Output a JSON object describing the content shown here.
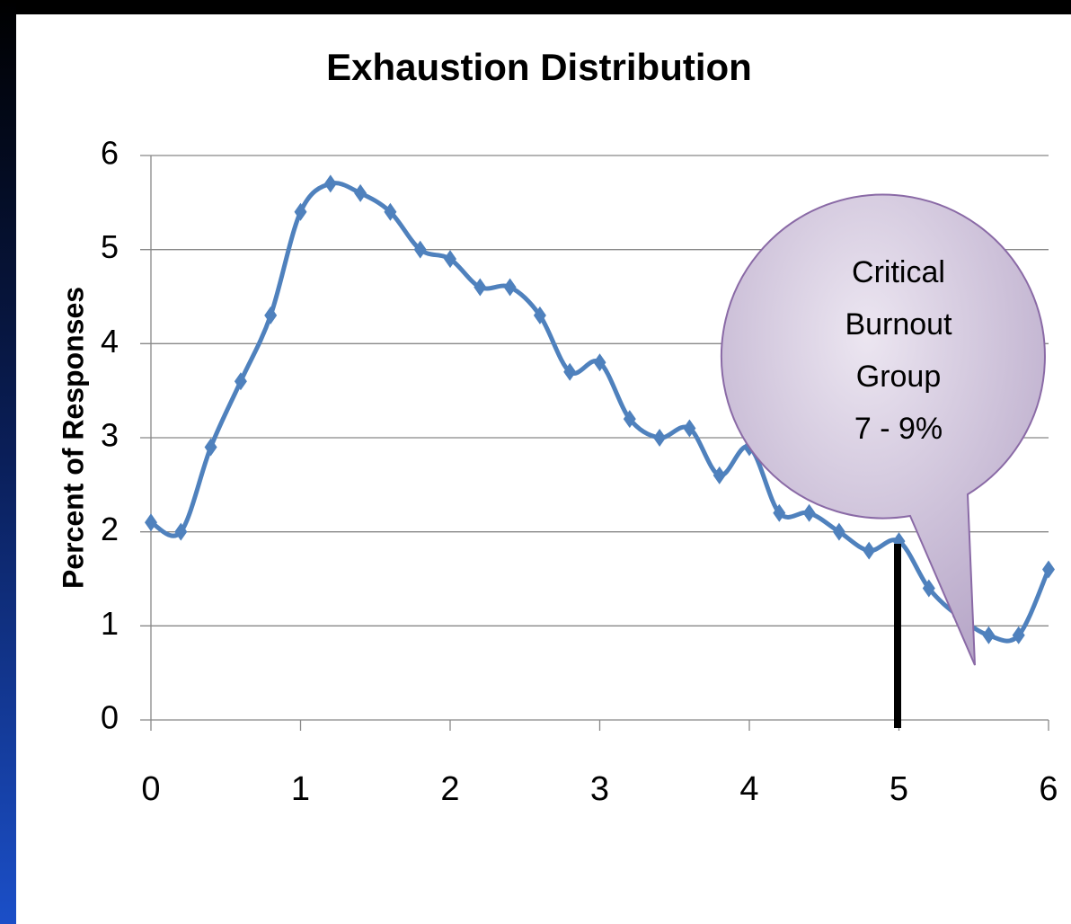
{
  "chart_data": {
    "type": "line",
    "title": "Exhaustion Distribution",
    "y_label": "Percent of Responses",
    "x": [
      0,
      0.2,
      0.4,
      0.6,
      0.8,
      1,
      1.2,
      1.4,
      1.6,
      1.8,
      2,
      2.2,
      2.4,
      2.6,
      2.8,
      3,
      3.2,
      3.4,
      3.6,
      3.8,
      4,
      4.2,
      4.4,
      4.6,
      4.8,
      5,
      5.2,
      5.4,
      5.6,
      5.8,
      6
    ],
    "series": [
      {
        "name": "Exhaustion",
        "color": "#4f81bd",
        "values": [
          2.1,
          2.0,
          2.9,
          3.6,
          4.3,
          5.4,
          5.7,
          5.6,
          5.4,
          5.0,
          4.9,
          4.6,
          4.6,
          4.3,
          3.7,
          3.8,
          3.2,
          3.0,
          3.1,
          2.6,
          2.9,
          2.2,
          2.2,
          2.0,
          1.8,
          1.9,
          1.4,
          1.1,
          0.9,
          0.9,
          1.6
        ]
      }
    ],
    "xlim": [
      0,
      6
    ],
    "xticks": [
      0,
      1,
      2,
      3,
      4,
      5,
      6
    ],
    "ylim": [
      0,
      6
    ],
    "yticks": [
      0,
      1,
      2,
      3,
      4,
      5,
      6
    ],
    "grid": true,
    "annotation": [
      "Critical",
      "Burnout",
      "Group",
      "7 - 9%"
    ]
  }
}
